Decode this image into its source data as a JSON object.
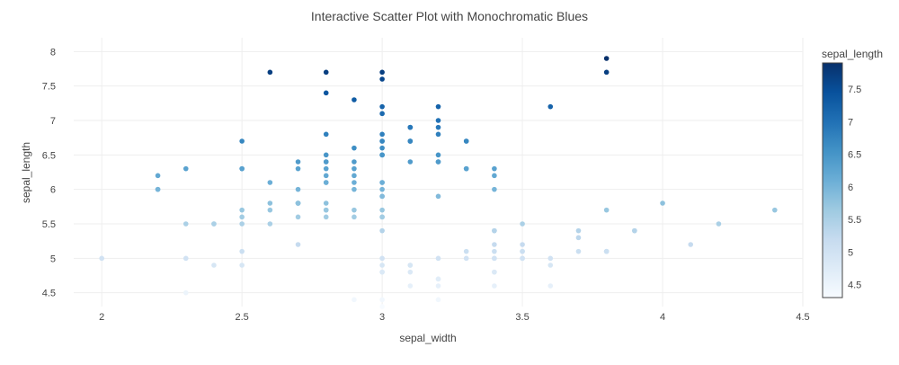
{
  "chart_data": {
    "type": "scatter",
    "title": "Interactive Scatter Plot with Monochromatic Blues",
    "xlabel": "sepal_width",
    "ylabel": "sepal_length",
    "xlim": [
      1.9,
      4.5
    ],
    "ylim": [
      4.3,
      8.2
    ],
    "xticks": [
      2,
      2.5,
      3,
      3.5,
      4,
      4.5
    ],
    "yticks": [
      4.5,
      5,
      5.5,
      6,
      6.5,
      7,
      7.5,
      8
    ],
    "grid": true,
    "colorbar": {
      "title": "sepal_length",
      "range": [
        4.3,
        7.9
      ],
      "ticks": [
        4.5,
        5,
        5.5,
        6,
        6.5,
        7,
        7.5
      ],
      "colorscale": [
        "#f7fbff",
        "#deebf7",
        "#c6dbef",
        "#9ecae1",
        "#6baed6",
        "#4292c6",
        "#2171b5",
        "#08519c",
        "#08306b"
      ]
    },
    "x": [
      3.5,
      3.0,
      3.2,
      3.1,
      3.6,
      3.9,
      3.4,
      3.4,
      2.9,
      3.1,
      3.7,
      3.4,
      3.0,
      3.0,
      4.0,
      4.4,
      3.9,
      3.5,
      3.8,
      3.8,
      3.4,
      3.7,
      3.6,
      3.3,
      3.4,
      3.0,
      3.4,
      3.5,
      3.4,
      3.2,
      3.1,
      3.4,
      4.1,
      4.2,
      3.1,
      3.2,
      3.5,
      3.6,
      3.0,
      3.4,
      3.5,
      2.3,
      3.2,
      3.5,
      3.8,
      3.0,
      3.8,
      3.2,
      3.7,
      3.3,
      3.2,
      3.2,
      3.1,
      2.3,
      2.8,
      2.8,
      3.3,
      2.4,
      2.9,
      2.7,
      2.0,
      3.0,
      2.2,
      2.9,
      2.9,
      3.1,
      3.0,
      2.7,
      2.2,
      2.5,
      3.2,
      2.8,
      2.5,
      2.8,
      2.9,
      3.0,
      2.8,
      3.0,
      2.9,
      2.6,
      2.4,
      2.4,
      2.7,
      2.7,
      3.0,
      3.4,
      3.1,
      2.3,
      3.0,
      2.5,
      2.6,
      3.0,
      2.6,
      2.3,
      2.7,
      3.0,
      2.9,
      2.9,
      2.5,
      2.8,
      3.3,
      2.7,
      3.0,
      2.9,
      3.0,
      3.0,
      2.5,
      2.9,
      2.5,
      3.6,
      3.2,
      2.7,
      3.0,
      2.5,
      2.8,
      3.2,
      3.0,
      3.8,
      2.6,
      2.2,
      3.2,
      2.8,
      2.8,
      2.7,
      3.3,
      3.2,
      2.8,
      3.0,
      2.8,
      3.0,
      2.8,
      3.8,
      2.8,
      2.8,
      2.6,
      3.0,
      3.4,
      3.1,
      3.0,
      3.1,
      3.1,
      3.1,
      2.7,
      3.2,
      3.3,
      3.0,
      2.5,
      3.0,
      3.4,
      3.0
    ],
    "y": [
      5.1,
      4.9,
      4.7,
      4.6,
      5.0,
      5.4,
      4.6,
      5.0,
      4.4,
      4.9,
      5.4,
      4.8,
      4.8,
      4.3,
      5.8,
      5.7,
      5.4,
      5.1,
      5.7,
      5.1,
      5.4,
      5.1,
      4.6,
      5.1,
      4.8,
      5.0,
      5.0,
      5.2,
      5.2,
      4.7,
      4.8,
      5.4,
      5.2,
      5.5,
      4.9,
      5.0,
      5.5,
      4.9,
      4.4,
      5.1,
      5.0,
      4.5,
      4.4,
      5.0,
      5.1,
      4.8,
      5.1,
      4.6,
      5.3,
      5.0,
      7.0,
      6.4,
      6.9,
      5.5,
      6.5,
      5.7,
      6.3,
      4.9,
      6.6,
      5.2,
      5.0,
      5.9,
      6.0,
      6.1,
      5.6,
      6.7,
      5.6,
      5.8,
      6.2,
      5.6,
      5.9,
      6.1,
      6.3,
      6.1,
      6.4,
      6.6,
      6.8,
      6.7,
      6.0,
      5.7,
      5.5,
      5.5,
      5.8,
      6.0,
      5.4,
      6.0,
      6.7,
      6.3,
      5.6,
      5.5,
      5.5,
      6.1,
      5.8,
      5.0,
      5.6,
      5.7,
      5.7,
      6.2,
      5.1,
      5.7,
      6.3,
      5.8,
      7.1,
      6.3,
      6.5,
      7.6,
      4.9,
      7.3,
      6.7,
      7.2,
      6.5,
      6.4,
      6.8,
      5.7,
      5.8,
      6.4,
      6.5,
      7.7,
      7.7,
      6.0,
      6.9,
      5.6,
      7.7,
      6.3,
      6.7,
      7.2,
      6.2,
      6.1,
      6.4,
      7.2,
      7.4,
      7.9,
      6.4,
      6.3,
      6.1,
      7.7,
      6.3,
      6.4,
      6.0,
      6.9,
      6.7,
      6.9,
      5.8,
      6.8,
      6.7,
      6.7,
      6.3,
      6.5,
      6.2,
      5.9
    ]
  }
}
